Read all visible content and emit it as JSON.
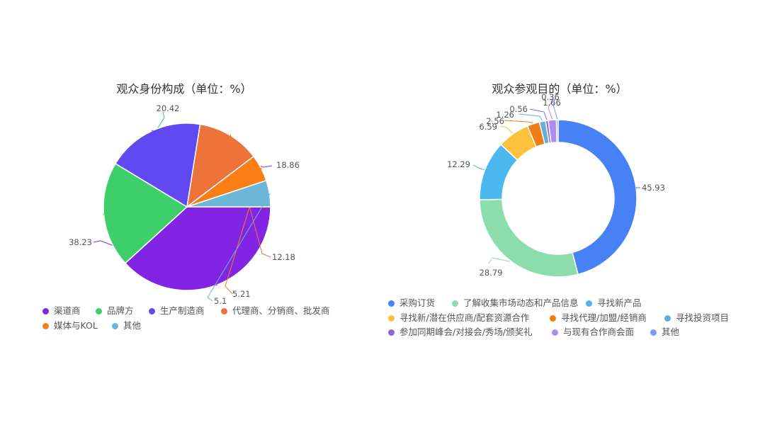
{
  "chart_data": [
    {
      "type": "pie",
      "title": "观众身份构成（单位：%）",
      "series": [
        {
          "name": "渠道商",
          "value": 38.23,
          "label": "38.23",
          "color": "#8224E3"
        },
        {
          "name": "品牌方",
          "value": 20.42,
          "label": "20.42",
          "color": "#3ECF6B"
        },
        {
          "name": "生产制造商",
          "value": 18.86,
          "label": "18.86",
          "color": "#6149F2"
        },
        {
          "name": "代理商、分销商、批发商",
          "value": 12.18,
          "label": "12.18",
          "color": "#ED733A"
        },
        {
          "name": "媒体与KOL",
          "value": 5.21,
          "label": "5.21",
          "color": "#FA7E16"
        },
        {
          "name": "其他",
          "value": 5.1,
          "label": "5.1",
          "color": "#6CB6D8"
        }
      ]
    },
    {
      "type": "donut",
      "title": "观众参观目的（单位：%）",
      "series": [
        {
          "name": "采购订货",
          "value": 45.93,
          "label": "45.93",
          "color": "#4682F5"
        },
        {
          "name": "了解收集市场动态和产品信息",
          "value": 28.79,
          "label": "28.79",
          "color": "#8BDEAB"
        },
        {
          "name": "寻找新产品",
          "value": 12.29,
          "label": "12.29",
          "color": "#4CB8F0"
        },
        {
          "name": "寻找新/潜在供应商/配套资源合作",
          "value": 6.59,
          "label": "6.59",
          "color": "#FCC23C"
        },
        {
          "name": "寻找代理/加盟/经销商",
          "value": 2.56,
          "label": "2.56",
          "color": "#F27C14"
        },
        {
          "name": "寻找投资项目",
          "value": 1.26,
          "label": "1.26",
          "color": "#62B0D8"
        },
        {
          "name": "参加同期峰会/对接会/秀场/颁奖礼",
          "value": 0.56,
          "label": "0.56",
          "color": "#9164D4"
        },
        {
          "name": "与现有合作商会面",
          "value": 1.66,
          "label": "1.66",
          "color": "#B08CF2"
        },
        {
          "name": "其他",
          "value": 0.36,
          "label": "0.36",
          "color": "#7F96F3"
        }
      ]
    }
  ]
}
